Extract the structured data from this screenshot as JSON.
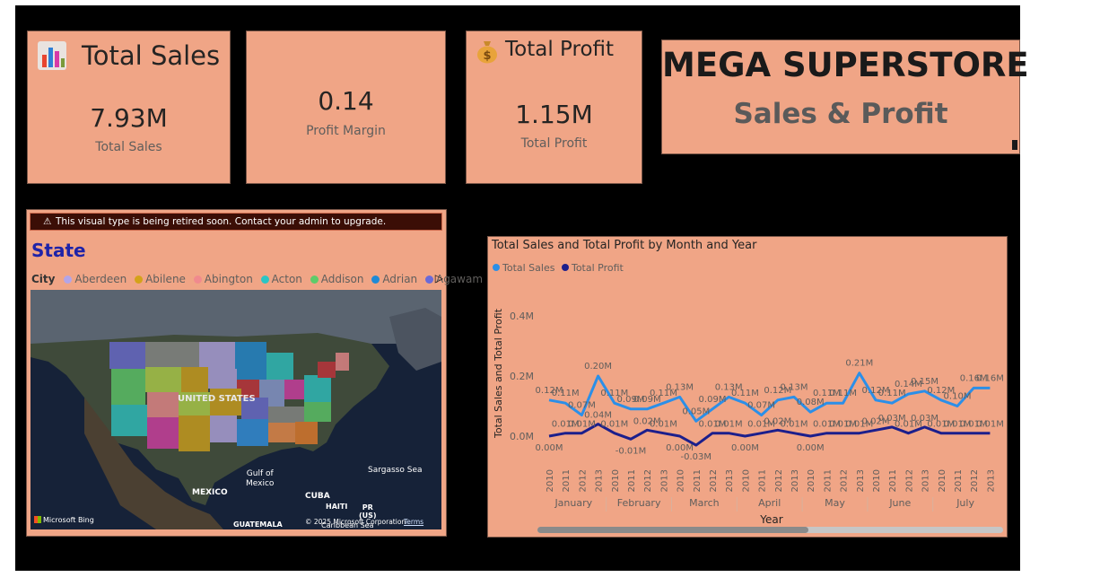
{
  "kpis": {
    "total_sales": {
      "title": "Total Sales",
      "value": "7.93M",
      "label": "Total Sales",
      "icon": "bar-chart-icon"
    },
    "profit_margin": {
      "value": "0.14",
      "label": "Profit Margin"
    },
    "total_profit": {
      "title": "Total Profit",
      "value": "1.15M",
      "label": "Total Profit",
      "icon": "money-bag-icon"
    }
  },
  "banner": {
    "title": "MEGA SUPERSTORE",
    "subtitle": "Sales & Profit"
  },
  "map": {
    "warning": "This visual type is being retired soon. Contact your admin to upgrade.",
    "title": "State",
    "legend_title": "City",
    "legend_items": [
      {
        "name": "Aberdeen",
        "color": "#b3a5e8"
      },
      {
        "name": "Abilene",
        "color": "#d4a21a"
      },
      {
        "name": "Abington",
        "color": "#f08a8e"
      },
      {
        "name": "Acton",
        "color": "#2bc5c5"
      },
      {
        "name": "Addison",
        "color": "#5dcc6a"
      },
      {
        "name": "Adrian",
        "color": "#1f8ad6"
      },
      {
        "name": "Agawam",
        "color": "#6a6ad8"
      }
    ],
    "labels": {
      "country": "UNITED STATES",
      "gulf": "Gulf of\nMexico",
      "mexico": "MEXICO",
      "sargasso": "Sargasso Sea",
      "cuba": "CUBA",
      "haiti": "HAITI",
      "pr": "PR\n(US)",
      "guatemala": "GUATEMALA",
      "caribbean": "Caribbean Sea",
      "bing": "Microsoft Bing",
      "copyright": "© 2025 Microsoft Corporation",
      "terms": "Terms"
    }
  },
  "chart_data": {
    "type": "line",
    "title": "Total Sales and Total Profit by Month and Year",
    "xlabel": "Year",
    "ylabel": "Total Sales and Total Profit",
    "y_ticks": [
      "0.4M",
      "0.2M",
      "0.0M"
    ],
    "ylim": [
      -0.05,
      0.45
    ],
    "x": [
      "2010",
      "2011",
      "2012",
      "2013",
      "2010",
      "2011",
      "2012",
      "2013",
      "2010",
      "2011",
      "2012",
      "2013",
      "2010",
      "2011",
      "2012",
      "2013",
      "2010",
      "2011",
      "2012",
      "2013",
      "2010",
      "2011",
      "2012",
      "2013",
      "2010",
      "2011",
      "2012",
      "2013"
    ],
    "groups": [
      "January",
      "February",
      "March",
      "April",
      "May",
      "June",
      "July"
    ],
    "series": [
      {
        "name": "Total Sales",
        "color": "#2b8fe8",
        "values": [
          0.12,
          0.11,
          0.07,
          0.2,
          0.11,
          0.09,
          0.09,
          0.11,
          0.13,
          0.05,
          0.09,
          0.13,
          0.11,
          0.07,
          0.12,
          0.13,
          0.08,
          0.11,
          0.11,
          0.21,
          0.12,
          0.11,
          0.14,
          0.15,
          0.12,
          0.1,
          0.16,
          0.16
        ],
        "labels": [
          "0.12M",
          "0.11M",
          "0.07M",
          "0.20M",
          "0.11M",
          "0.09M",
          "0.09M",
          "0.11M",
          "0.13M",
          "0.05M",
          "0.09M",
          "0.13M",
          "0.11M",
          "0.07M",
          "0.12M",
          "0.13M",
          "0.08M",
          "0.11M",
          "0.11M",
          "0.21M",
          "0.12M",
          "0.11M",
          "0.14M",
          "0.15M",
          "0.12M",
          "0.10M",
          "0.16M",
          "0.16M"
        ]
      },
      {
        "name": "Total Profit",
        "color": "#1c1f8c",
        "values": [
          0.0,
          0.01,
          0.01,
          0.04,
          0.01,
          -0.01,
          0.02,
          0.01,
          0.0,
          -0.03,
          0.01,
          0.01,
          0.0,
          0.01,
          0.02,
          0.01,
          0.0,
          0.01,
          0.01,
          0.01,
          0.02,
          0.03,
          0.01,
          0.03,
          0.01,
          0.01,
          0.01,
          0.01
        ],
        "labels": [
          "0.00M",
          "0.01M",
          "0.01M",
          "0.04M",
          "0.01M",
          "-0.01M",
          "0.02M",
          "0.01M",
          "0.00M",
          "-0.03M",
          "0.01M",
          "0.01M",
          "0.00M",
          "0.01M",
          "0.02M",
          "0.01M",
          "0.00M",
          "0.01M",
          "0.01M",
          "0.01M",
          "0.02M",
          "0.03M",
          "0.01M",
          "0.03M",
          "0.01M",
          "0.01M",
          "0.01M",
          "0.01M"
        ]
      }
    ]
  }
}
